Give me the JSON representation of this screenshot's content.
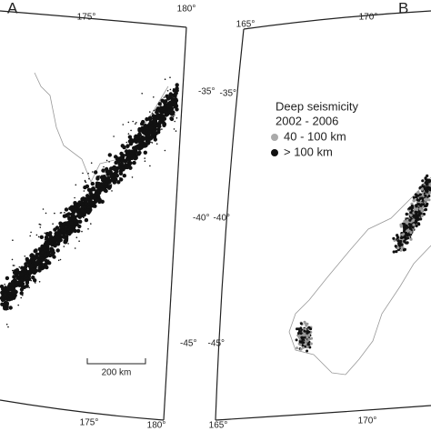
{
  "panels": [
    {
      "label": "A",
      "top_ticks": [
        "175°",
        "180°"
      ],
      "side_ticks": [
        "-35°",
        "-40°",
        "-45°"
      ],
      "bottom_ticks": [
        "175°",
        "180°"
      ],
      "scale_bar": "200 km"
    },
    {
      "label": "B",
      "top_ticks": [
        "165°",
        "170°"
      ],
      "side_ticks": [
        "-35°",
        "-40°",
        "-45°"
      ],
      "bottom_ticks": [
        "165°",
        "170°"
      ],
      "legend": {
        "title": "Deep seismicity",
        "subtitle": "2002 - 2006",
        "items": [
          "40 - 100 km",
          "> 100 km"
        ]
      }
    }
  ]
}
